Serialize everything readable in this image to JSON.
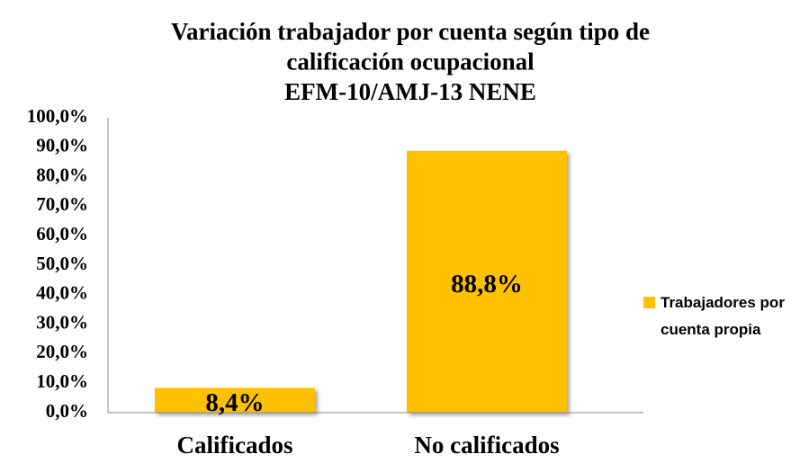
{
  "chart_data": {
    "type": "bar",
    "title": [
      "Variación trabajador por cuenta según tipo de",
      "calificación ocupacional",
      "EFM-10/AMJ-13 NENE"
    ],
    "categories": [
      "Calificados",
      "No calificados"
    ],
    "series": [
      {
        "name": "Trabajadores por cuenta propia",
        "color": "#ffc000",
        "values": [
          8.4,
          88.8
        ],
        "value_labels": [
          "8,4%",
          "88,8%"
        ]
      }
    ],
    "ylim": [
      0,
      100
    ],
    "yticks": [
      {
        "value": 0,
        "label": "0,0%"
      },
      {
        "value": 10,
        "label": "10,0%"
      },
      {
        "value": 20,
        "label": "20,0%"
      },
      {
        "value": 30,
        "label": "30,0%"
      },
      {
        "value": 40,
        "label": "40,0%"
      },
      {
        "value": 50,
        "label": "50,0%"
      },
      {
        "value": 60,
        "label": "60,0%"
      },
      {
        "value": 70,
        "label": "70,0%"
      },
      {
        "value": 80,
        "label": "80,0%"
      },
      {
        "value": 90,
        "label": "90,0%"
      },
      {
        "value": 100,
        "label": "100,0%"
      }
    ],
    "grid": false,
    "legend": "right"
  }
}
